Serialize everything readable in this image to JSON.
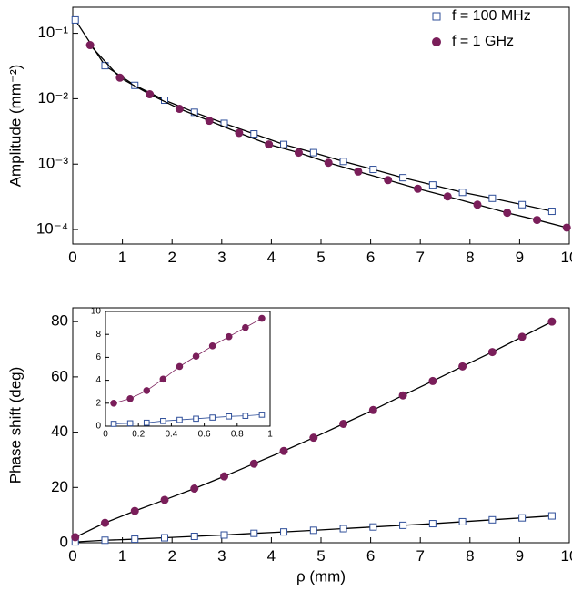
{
  "chart_data": [
    {
      "type": "scatter",
      "log_y": true,
      "legend": "upper right",
      "ylabel": "Amplitude (mm⁻²)",
      "xlim": [
        0,
        10
      ],
      "xticks": [
        0,
        1,
        2,
        3,
        4,
        5,
        6,
        7,
        8,
        9,
        10
      ],
      "ylim": [
        6e-05,
        0.25
      ],
      "yticks": [
        {
          "value": 0.0001,
          "label": "10⁻⁴"
        },
        {
          "value": 0.001,
          "label": "10⁻³"
        },
        {
          "value": 0.01,
          "label": "10⁻²"
        },
        {
          "value": 0.1,
          "label": "10⁻¹"
        }
      ],
      "series": [
        {
          "name": "f = 100 MHz",
          "color": "#2f4f9a",
          "marker": "square",
          "line_color": "#000000",
          "x": [
            0.05,
            0.65,
            1.25,
            1.85,
            2.45,
            3.05,
            3.65,
            4.25,
            4.85,
            5.45,
            6.05,
            6.65,
            7.25,
            7.85,
            8.45,
            9.05,
            9.65
          ],
          "values": [
            0.16,
            0.032,
            0.016,
            0.0095,
            0.0062,
            0.0042,
            0.0029,
            0.002,
            0.0015,
            0.0011,
            0.00083,
            0.00062,
            0.00048,
            0.00037,
            0.0003,
            0.00024,
            0.00019
          ]
        },
        {
          "name": "f = 1 GHz",
          "color": "#7a1e5a",
          "marker": "circle",
          "line_color": "#000000",
          "x": [
            0.35,
            0.95,
            1.55,
            2.15,
            2.75,
            3.35,
            3.95,
            4.55,
            5.15,
            5.75,
            6.35,
            6.95,
            7.55,
            8.15,
            8.75,
            9.35,
            9.95
          ],
          "values": [
            0.066,
            0.021,
            0.0117,
            0.007,
            0.0046,
            0.003,
            0.002,
            0.0015,
            0.00105,
            0.00077,
            0.00057,
            0.00042,
            0.00032,
            0.00024,
            0.00018,
            0.00014,
            0.000107
          ]
        }
      ]
    },
    {
      "type": "scatter",
      "log_y": false,
      "xlabel": "ρ (mm)",
      "ylabel": "Phase shift (deg)",
      "xlim": [
        0,
        10
      ],
      "xticks": [
        0,
        1,
        2,
        3,
        4,
        5,
        6,
        7,
        8,
        9,
        10
      ],
      "ylim": [
        0,
        85
      ],
      "yticks": [
        0,
        20,
        40,
        60,
        80
      ],
      "series": [
        {
          "color": "#2f4f9a",
          "marker": "square",
          "line_color": "#000000",
          "x": [
            0.05,
            0.65,
            1.25,
            1.85,
            2.45,
            3.05,
            3.65,
            4.25,
            4.85,
            5.45,
            6.05,
            6.65,
            7.25,
            7.85,
            8.45,
            9.05,
            9.65
          ],
          "values": [
            0.3,
            0.9,
            1.3,
            1.8,
            2.3,
            2.8,
            3.4,
            3.9,
            4.5,
            5.1,
            5.7,
            6.3,
            6.9,
            7.6,
            8.3,
            9.0,
            9.7
          ]
        },
        {
          "color": "#7a1e5a",
          "marker": "circle",
          "line_color": "#000000",
          "x": [
            0.05,
            0.65,
            1.25,
            1.85,
            2.45,
            3.05,
            3.65,
            4.25,
            4.85,
            5.45,
            6.05,
            6.65,
            7.25,
            7.85,
            8.45,
            9.05,
            9.65
          ],
          "values": [
            2,
            7.2,
            11.5,
            15.5,
            19.6,
            24,
            28.6,
            33.2,
            38,
            43,
            48,
            53.3,
            58.5,
            63.8,
            69,
            74.5,
            80
          ]
        }
      ]
    },
    {
      "type": "scatter",
      "log_y": false,
      "xlim": [
        0,
        1
      ],
      "xticks": [
        0,
        0.2,
        0.4,
        0.6,
        0.8,
        1
      ],
      "ylim": [
        0,
        10
      ],
      "yticks": [
        0,
        2,
        4,
        6,
        8,
        10
      ],
      "series": [
        {
          "color": "#2f4f9a",
          "marker": "square",
          "line_color": "#2f4f9a",
          "x": [
            0.05,
            0.15,
            0.25,
            0.35,
            0.45,
            0.55,
            0.65,
            0.75,
            0.85,
            0.95
          ],
          "values": [
            0.2,
            0.25,
            0.3,
            0.45,
            0.55,
            0.65,
            0.75,
            0.85,
            0.9,
            1.0
          ]
        },
        {
          "color": "#7a1e5a",
          "marker": "circle",
          "line_color": "#7a1e5a",
          "x": [
            0.05,
            0.15,
            0.25,
            0.35,
            0.45,
            0.55,
            0.65,
            0.75,
            0.85,
            0.95
          ],
          "values": [
            2.0,
            2.4,
            3.1,
            4.1,
            5.2,
            6.1,
            7.0,
            7.8,
            8.6,
            9.4
          ]
        }
      ]
    }
  ]
}
